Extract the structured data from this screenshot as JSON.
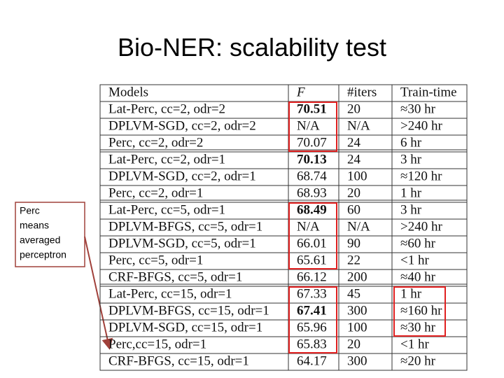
{
  "title": "Bio-NER: scalability test",
  "note": {
    "lines": [
      "Perc",
      "means",
      "averaged",
      "perceptron"
    ]
  },
  "table": {
    "header": [
      "Models",
      "F",
      "#iters",
      "Train-time"
    ],
    "rows": [
      [
        "Lat-Perc, cc=2, odr=2",
        "70.51",
        "20",
        "≈30 hr"
      ],
      [
        "DPLVM-SGD, cc=2, odr=2",
        "N/A",
        "N/A",
        ">240 hr"
      ],
      [
        "Perc, cc=2, odr=2",
        "70.07",
        "24",
        "6 hr"
      ],
      [
        "Lat-Perc, cc=2, odr=1",
        "70.13",
        "24",
        "3 hr"
      ],
      [
        "DPLVM-SGD, cc=2, odr=1",
        "68.74",
        "100",
        "≈120 hr"
      ],
      [
        "Perc, cc=2, odr=1",
        "68.93",
        "20",
        "1 hr"
      ],
      [
        "Lat-Perc, cc=5, odr=1",
        "68.49",
        "60",
        "3 hr"
      ],
      [
        "DPLVM-BFGS, cc=5, odr=1",
        "N/A",
        "N/A",
        ">240 hr"
      ],
      [
        "DPLVM-SGD, cc=5, odr=1",
        "66.01",
        "90",
        "≈60 hr"
      ],
      [
        "Perc, cc=5, odr=1",
        "65.61",
        "22",
        "<1 hr"
      ],
      [
        "CRF-BFGS, cc=5, odr=1",
        "66.12",
        "200",
        "≈40 hr"
      ],
      [
        "Lat-Perc, cc=15, odr=1",
        "67.33",
        "45",
        "1 hr"
      ],
      [
        "DPLVM-BFGS, cc=15, odr=1",
        "67.41",
        "300",
        "≈160 hr"
      ],
      [
        "DPLVM-SGD, cc=15, odr=1",
        "65.96",
        "100",
        "≈30 hr"
      ],
      [
        "Perc,cc=15, odr=1",
        "65.83",
        "20",
        "<1 hr"
      ],
      [
        "CRF-BFGS, cc=15, odr=1",
        "64.17",
        "300",
        "≈20 hr"
      ]
    ]
  }
}
